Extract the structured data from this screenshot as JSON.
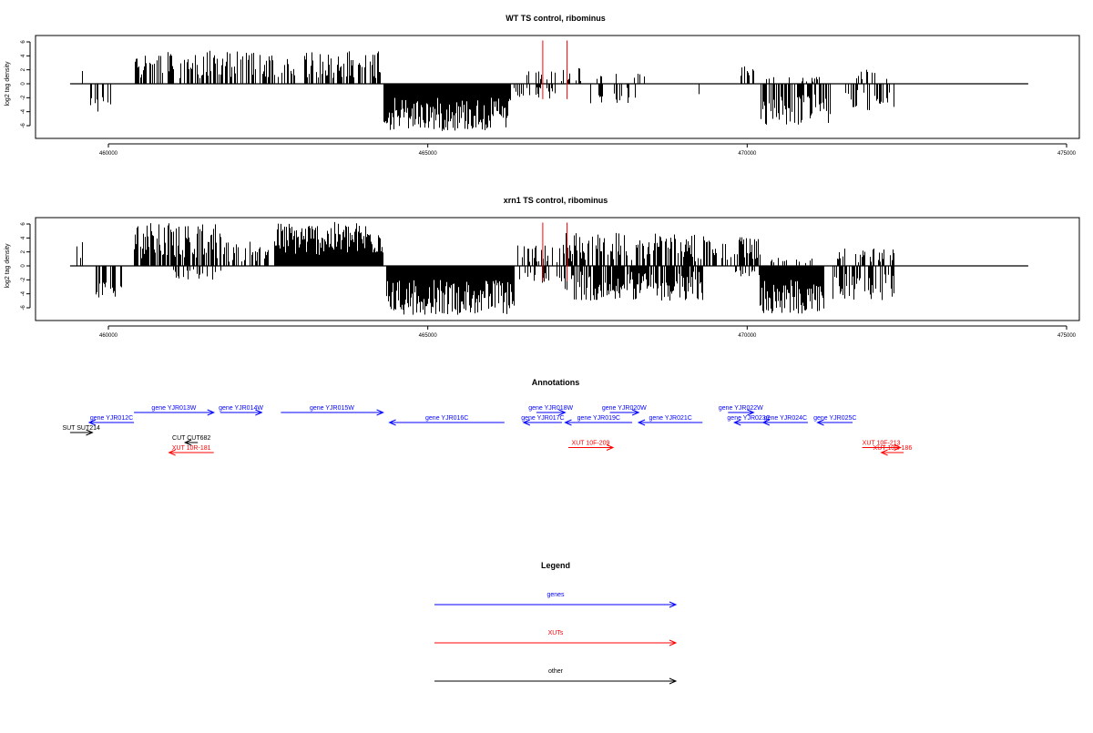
{
  "chart_data": [
    {
      "type": "bar",
      "title": "WT TS control, ribominus",
      "ylabel": "log2 tag density",
      "xlim": [
        458900,
        474400
      ],
      "ylim": [
        -7,
        7
      ],
      "xticks": [
        460000,
        465000,
        470000,
        475000
      ],
      "xtick_labels": [
        "460000",
        "465000",
        "470000",
        "475000"
      ],
      "yticks": [
        -6,
        -4,
        -2,
        0,
        2,
        4,
        6
      ],
      "ytick_labels": [
        "-6",
        "-4",
        "-2",
        "0",
        "2",
        "4",
        "6"
      ],
      "baseline": {
        "x_start": 459400,
        "x_end": 474400
      },
      "segments": [
        {
          "x0": 459500,
          "x1": 459650,
          "strand": 1,
          "min": 0.5,
          "max": 2.0,
          "density": 0.3
        },
        {
          "x0": 459700,
          "x1": 460050,
          "strand": -1,
          "min": 1.5,
          "max": 4.2,
          "density": 0.4
        },
        {
          "x0": 460400,
          "x1": 464250,
          "strand": 1,
          "min": 0.8,
          "max": 4.8,
          "density": 0.55
        },
        {
          "x0": 464300,
          "x1": 466300,
          "strand": -1,
          "min": 2.0,
          "max": 6.8,
          "density": 1.0
        },
        {
          "x0": 466350,
          "x1": 467000,
          "strand": -1,
          "min": 0.5,
          "max": 2.5,
          "density": 0.3
        },
        {
          "x0": 466450,
          "x1": 467400,
          "strand": 1,
          "min": 0.3,
          "max": 2.5,
          "density": 0.25
        },
        {
          "x0": 467500,
          "x1": 468300,
          "strand": -1,
          "min": 0.5,
          "max": 2.8,
          "density": 0.3
        },
        {
          "x0": 467600,
          "x1": 468400,
          "strand": 1,
          "min": 0.5,
          "max": 1.5,
          "density": 0.2
        },
        {
          "x0": 469200,
          "x1": 469300,
          "strand": -1,
          "min": 0.8,
          "max": 1.6,
          "density": 0.2
        },
        {
          "x0": 469900,
          "x1": 470100,
          "strand": 1,
          "min": 1.0,
          "max": 2.6,
          "density": 0.3
        },
        {
          "x0": 470200,
          "x1": 471300,
          "strand": -1,
          "min": 1.5,
          "max": 6.0,
          "density": 0.65
        },
        {
          "x0": 470300,
          "x1": 471200,
          "strand": 1,
          "min": 0.3,
          "max": 1.0,
          "density": 0.15
        },
        {
          "x0": 471500,
          "x1": 472300,
          "strand": -1,
          "min": 0.8,
          "max": 3.8,
          "density": 0.35
        },
        {
          "x0": 471700,
          "x1": 472300,
          "strand": 1,
          "min": 0.5,
          "max": 2.0,
          "density": 0.2
        }
      ],
      "markers": [
        {
          "x": 466800,
          "color": "#ff0000"
        },
        {
          "x": 467180,
          "color": "#ff0000"
        }
      ]
    },
    {
      "type": "bar",
      "title": "xrn1 TS control, ribominus",
      "ylabel": "log2 tag density",
      "xlim": [
        458900,
        474400
      ],
      "ylim": [
        -7,
        7
      ],
      "xticks": [
        460000,
        465000,
        470000,
        475000
      ],
      "xtick_labels": [
        "460000",
        "465000",
        "470000",
        "475000"
      ],
      "yticks": [
        -6,
        -4,
        -2,
        0,
        2,
        4,
        6
      ],
      "ytick_labels": [
        "-6",
        "-4",
        "-2",
        "0",
        "2",
        "4",
        "6"
      ],
      "baseline": {
        "x_start": 459400,
        "x_end": 474400
      },
      "segments": [
        {
          "x0": 459450,
          "x1": 459600,
          "strand": 1,
          "min": 0.5,
          "max": 3.4,
          "density": 0.3
        },
        {
          "x0": 459800,
          "x1": 460200,
          "strand": -1,
          "min": 1.5,
          "max": 5.0,
          "density": 0.7
        },
        {
          "x0": 460400,
          "x1": 461800,
          "strand": 1,
          "min": 1.0,
          "max": 6.2,
          "density": 0.75
        },
        {
          "x0": 461000,
          "x1": 461800,
          "strand": -1,
          "min": 0.5,
          "max": 2.0,
          "density": 0.3
        },
        {
          "x0": 461800,
          "x1": 462500,
          "strand": 1,
          "min": 0.5,
          "max": 3.5,
          "density": 0.4
        },
        {
          "x0": 462600,
          "x1": 464300,
          "strand": 1,
          "min": 1.5,
          "max": 6.3,
          "density": 1.0
        },
        {
          "x0": 464350,
          "x1": 466350,
          "strand": -1,
          "min": 2.0,
          "max": 7.0,
          "density": 1.0
        },
        {
          "x0": 466400,
          "x1": 467300,
          "strand": 1,
          "min": 0.3,
          "max": 3.0,
          "density": 0.45
        },
        {
          "x0": 466400,
          "x1": 467100,
          "strand": -1,
          "min": 0.5,
          "max": 2.5,
          "density": 0.35
        },
        {
          "x0": 467100,
          "x1": 469300,
          "strand": 1,
          "min": 0.5,
          "max": 4.8,
          "density": 0.6
        },
        {
          "x0": 467100,
          "x1": 469300,
          "strand": -1,
          "min": 0.8,
          "max": 5.0,
          "density": 0.75
        },
        {
          "x0": 469300,
          "x1": 470200,
          "strand": 1,
          "min": 0.8,
          "max": 4.3,
          "density": 0.5
        },
        {
          "x0": 469800,
          "x1": 470200,
          "strand": -1,
          "min": 0.5,
          "max": 1.5,
          "density": 0.3
        },
        {
          "x0": 470200,
          "x1": 471200,
          "strand": -1,
          "min": 2.0,
          "max": 7.0,
          "density": 1.0
        },
        {
          "x0": 470300,
          "x1": 471100,
          "strand": 1,
          "min": 0.3,
          "max": 1.2,
          "density": 0.2
        },
        {
          "x0": 471300,
          "x1": 472300,
          "strand": -1,
          "min": 1.0,
          "max": 5.0,
          "density": 0.55
        },
        {
          "x0": 471400,
          "x1": 472300,
          "strand": 1,
          "min": 0.5,
          "max": 2.5,
          "density": 0.4
        }
      ],
      "markers": [
        {
          "x": 466800,
          "color": "#ff0000"
        },
        {
          "x": 467180,
          "color": "#ff0000"
        }
      ]
    }
  ],
  "annotations": {
    "title": "Annotations",
    "features": [
      {
        "label": "gene YJR012C",
        "class": "gene",
        "x_start": 460400,
        "x_end": 459700,
        "dir": "left",
        "row": 2
      },
      {
        "label": "gene YJR013W",
        "class": "gene",
        "x_start": 460400,
        "x_end": 461650,
        "dir": "right",
        "row": 1
      },
      {
        "label": "gene YJR014W",
        "class": "gene",
        "x_start": 461750,
        "x_end": 462400,
        "dir": "right",
        "row": 1
      },
      {
        "label": "gene YJR015W",
        "class": "gene",
        "x_start": 462700,
        "x_end": 464300,
        "dir": "right",
        "row": 1
      },
      {
        "label": "gene YJR016C",
        "class": "gene",
        "x_start": 466200,
        "x_end": 464400,
        "dir": "left",
        "row": 2
      },
      {
        "label": "gene YJR017C",
        "class": "gene",
        "x_start": 467100,
        "x_end": 466500,
        "dir": "left",
        "row": 2
      },
      {
        "label": "gene YJR018W",
        "class": "gene",
        "x_start": 466700,
        "x_end": 467150,
        "dir": "right",
        "row": 1
      },
      {
        "label": "gene YJR019C",
        "class": "gene",
        "x_start": 468200,
        "x_end": 467150,
        "dir": "left",
        "row": 2
      },
      {
        "label": "gene YJR020W",
        "class": "gene",
        "x_start": 467850,
        "x_end": 468300,
        "dir": "right",
        "row": 1
      },
      {
        "label": "gene YJR021C",
        "class": "gene",
        "x_start": 469300,
        "x_end": 468300,
        "dir": "left",
        "row": 2
      },
      {
        "label": "gene YJR022W",
        "class": "gene",
        "x_start": 469700,
        "x_end": 470100,
        "dir": "right",
        "row": 1
      },
      {
        "label": "gene YJR023C",
        "class": "gene",
        "x_start": 470250,
        "x_end": 469800,
        "dir": "left",
        "row": 2
      },
      {
        "label": "gene YJR024C",
        "class": "gene",
        "x_start": 470950,
        "x_end": 470250,
        "dir": "left",
        "row": 2
      },
      {
        "label": "gene YJR025C",
        "class": "gene",
        "x_start": 471650,
        "x_end": 471100,
        "dir": "left",
        "row": 2
      },
      {
        "label": "SUT SUT214",
        "class": "other",
        "x_start": 459400,
        "x_end": 459750,
        "dir": "right",
        "row": 3
      },
      {
        "label": "CUT CUT682",
        "class": "other",
        "x_start": 461400,
        "x_end": 461200,
        "dir": "left",
        "row": 4
      },
      {
        "label": "XUT 10R-181",
        "class": "xut",
        "x_start": 461650,
        "x_end": 460950,
        "dir": "left",
        "row": 5
      },
      {
        "label": "XUT 10F-209",
        "class": "xut",
        "x_start": 467200,
        "x_end": 467900,
        "dir": "right",
        "row": 4.5
      },
      {
        "label": "XUT 10F-213",
        "class": "xut",
        "x_start": 471800,
        "x_end": 472400,
        "dir": "right",
        "row": 4.5
      },
      {
        "label": "XUT 10R-186",
        "class": "xut",
        "x_start": 472450,
        "x_end": 472100,
        "dir": "left",
        "row": 5
      }
    ]
  },
  "legend": {
    "title": "Legend",
    "items": [
      {
        "label": "genes",
        "color": "#0000ff"
      },
      {
        "label": "XUTs",
        "color": "#ff0000"
      },
      {
        "label": "other",
        "color": "#000000"
      }
    ]
  },
  "colors": {
    "gene": "#0000ff",
    "xut": "#ff0000",
    "other": "#000000"
  }
}
